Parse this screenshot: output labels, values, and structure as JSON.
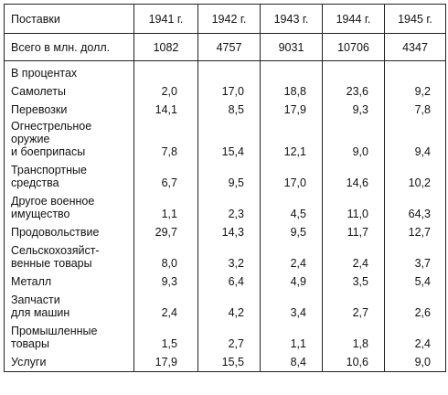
{
  "table": {
    "header": [
      "Поставки",
      "1941 г.",
      "1942 г.",
      "1943 г.",
      "1944 г.",
      "1945 г."
    ],
    "total": {
      "label": "Всего в млн. долл.",
      "values": [
        "1082",
        "4757",
        "9031",
        "10706",
        "4347"
      ]
    },
    "section_label": "В процентах",
    "rows": [
      {
        "label": "Самолеты",
        "values": [
          "2,0",
          "17,0",
          "18,8",
          "23,6",
          "9,2"
        ]
      },
      {
        "label": "Перевозки",
        "values": [
          "14,1",
          "8,5",
          "17,9",
          "9,3",
          "7,8"
        ]
      },
      {
        "label": "Огнестрельное\nоружие\nи боеприпасы",
        "values": [
          "7,8",
          "15,4",
          "12,1",
          "9,0",
          "9,4"
        ]
      },
      {
        "label": "Транспортные\nсредства",
        "values": [
          "6,7",
          "9,5",
          "17,0",
          "14,6",
          "10,2"
        ]
      },
      {
        "label": "Другое военное\nимущество",
        "values": [
          "1,1",
          "2,3",
          "4,5",
          "11,0",
          "64,3"
        ]
      },
      {
        "label": "Продовольствие",
        "values": [
          "29,7",
          "14,3",
          "9,5",
          "11,7",
          "12,7"
        ]
      },
      {
        "label": "Сельскохозяйст-\nвенные товары",
        "values": [
          "8,0",
          "3,2",
          "2,4",
          "2,4",
          "3,7"
        ]
      },
      {
        "label": "Металл",
        "values": [
          "9,3",
          "6,4",
          "4,9",
          "3,5",
          "5,4"
        ]
      },
      {
        "label": "Запчасти\nдля машин",
        "values": [
          "2,4",
          "4,2",
          "3,4",
          "2,7",
          "2,6"
        ]
      },
      {
        "label": "Промышленные\nтовары",
        "values": [
          "1,5",
          "2,7",
          "1,1",
          "1,8",
          "2,4"
        ]
      },
      {
        "label": "Услуги",
        "values": [
          "17,9",
          "15,5",
          "8,4",
          "10,6",
          "9,0"
        ]
      }
    ]
  }
}
